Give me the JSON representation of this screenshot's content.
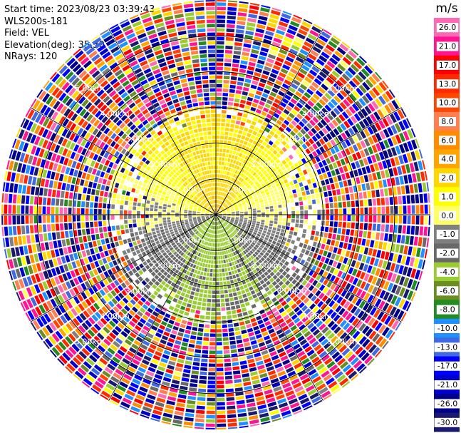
{
  "info": {
    "start_time": "Start time: 2023/08/23 03:39:43",
    "station": "WLS200s-181",
    "field": "Field: VEL",
    "elevation": "Elevation(deg): 35.30",
    "nrays": "NRays: 120"
  },
  "chart_data": {
    "type": "heatmap",
    "subtype": "radar-ppi",
    "field": "VEL",
    "elevation_deg": 35.3,
    "nrays": 120,
    "max_range_km": 6.0,
    "range_ring_labels": [
      "1.00km",
      "2.00km",
      "3.00km",
      "4.00km",
      "5.00km"
    ],
    "ring_radii_km": [
      1.0,
      2.0,
      3.0,
      4.0,
      5.0
    ],
    "spoke_angles_deg": [
      0,
      30,
      60,
      90,
      120,
      150,
      180,
      210,
      240,
      270,
      300,
      330
    ],
    "colorbar": {
      "unit": "m/s",
      "tick_labels": [
        "26.0",
        "21.0",
        "17.0",
        "13.0",
        "10.0",
        "8.0",
        "6.0",
        "4.0",
        "2.0",
        "1.0",
        "0.0",
        "-1.0",
        "-2.0",
        "-4.0",
        "-6.0",
        "-8.0",
        "-10.0",
        "-13.0",
        "-17.0",
        "-21.0",
        "-26.0",
        "-30.0"
      ],
      "colors": [
        "#ff69b4",
        "#ff1493",
        "#ff0000",
        "#ff2a00",
        "#ff4500",
        "#ff7f50",
        "#ff8c00",
        "#ffa500",
        "#ffd700",
        "#ffff00",
        "#ffff66",
        "#808080",
        "#696969",
        "#9acd32",
        "#6b8e23",
        "#228b22",
        "#1e90ff",
        "#4169e1",
        "#0000ff",
        "#0000cd",
        "#00008b",
        "#191970"
      ]
    },
    "pattern": {
      "positive_toward_north": true,
      "negative_toward_south": true,
      "coherent_core_max_km": 2.6,
      "noise_beyond_km": 3.0
    }
  }
}
